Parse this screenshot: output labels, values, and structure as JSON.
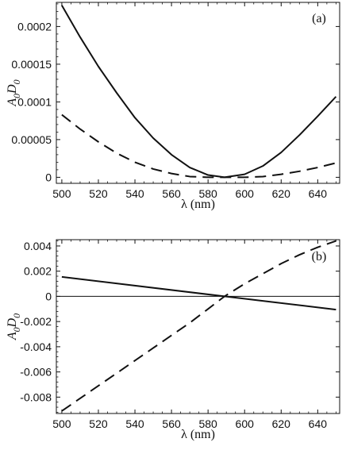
{
  "chart_data": [
    {
      "type": "line",
      "panel_label": "(a)",
      "xlabel": "λ (nm)",
      "ylabel": "A0D0",
      "ylabel_main": "A",
      "ylabel_sub1": "0",
      "ylabel_mid": "D",
      "ylabel_sub2": "0",
      "xlim": [
        497,
        652
      ],
      "ylim": [
        -8e-06,
        0.000232
      ],
      "x_ticks": [
        500,
        520,
        540,
        560,
        580,
        600,
        620,
        640
      ],
      "x_tick_labels": [
        "500",
        "520",
        "540",
        "560",
        "580",
        "600",
        "620",
        "640"
      ],
      "y_ticks": [
        0,
        5e-05,
        0.0001,
        0.00015,
        0.0002
      ],
      "y_tick_labels": [
        "0",
        "0.00005",
        "0.0001",
        "0.00015",
        "0.0002"
      ],
      "zero_line": false,
      "series": [
        {
          "style": "solid",
          "x": [
            500,
            510,
            520,
            530,
            540,
            550,
            560,
            570,
            580,
            589,
            600,
            610,
            620,
            630,
            640,
            650
          ],
          "y": [
            0.000228,
            0.000186,
            0.000147,
            0.000112,
            7.9e-05,
            5.2e-05,
            3e-05,
            1.3e-05,
            3e-06,
            0.0,
            4e-06,
            1.5e-05,
            3.3e-05,
            5.6e-05,
            8.1e-05,
            0.000107
          ]
        },
        {
          "style": "dashed",
          "x": [
            500,
            510,
            520,
            530,
            540,
            550,
            560,
            570,
            580,
            589,
            600,
            610,
            620,
            630,
            640,
            650
          ],
          "y": [
            8.3e-05,
            6.4e-05,
            4.7e-05,
            3.2e-05,
            2e-05,
            1.1e-05,
            5e-06,
            1e-06,
            0.0,
            0.0,
            0.0,
            1e-06,
            4e-06,
            8e-06,
            1.3e-05,
            1.9e-05
          ]
        }
      ]
    },
    {
      "type": "line",
      "panel_label": "(b)",
      "xlabel": "λ (nm)",
      "ylabel": "A0D0",
      "ylabel_main": "A",
      "ylabel_sub1": "0",
      "ylabel_mid": "D",
      "ylabel_sub2": "0",
      "xlim": [
        497,
        652
      ],
      "ylim": [
        -0.0093,
        0.0045
      ],
      "x_ticks": [
        500,
        520,
        540,
        560,
        580,
        600,
        620,
        640
      ],
      "x_tick_labels": [
        "500",
        "520",
        "540",
        "560",
        "580",
        "600",
        "620",
        "640"
      ],
      "y_ticks": [
        -0.008,
        -0.006,
        -0.004,
        -0.002,
        0,
        0.002,
        0.004
      ],
      "y_tick_labels": [
        "-0.008",
        "-0.006",
        "-0.004",
        "-0.002",
        "0",
        "0.002",
        "0.004"
      ],
      "zero_line": true,
      "series": [
        {
          "style": "solid",
          "x": [
            500,
            589,
            650
          ],
          "y": [
            0.00155,
            0.0,
            -0.00105
          ]
        },
        {
          "style": "dashed",
          "x": [
            500,
            510,
            520,
            530,
            540,
            550,
            560,
            570,
            580,
            589,
            600,
            610,
            620,
            630,
            640,
            650
          ],
          "y": [
            -0.0091,
            -0.0081,
            -0.0071,
            -0.0061,
            -0.0051,
            -0.0041,
            -0.0031,
            -0.0021,
            -0.001,
            0.0,
            0.001,
            0.0018,
            0.0026,
            0.0033,
            0.0039,
            0.0044
          ]
        }
      ]
    }
  ]
}
